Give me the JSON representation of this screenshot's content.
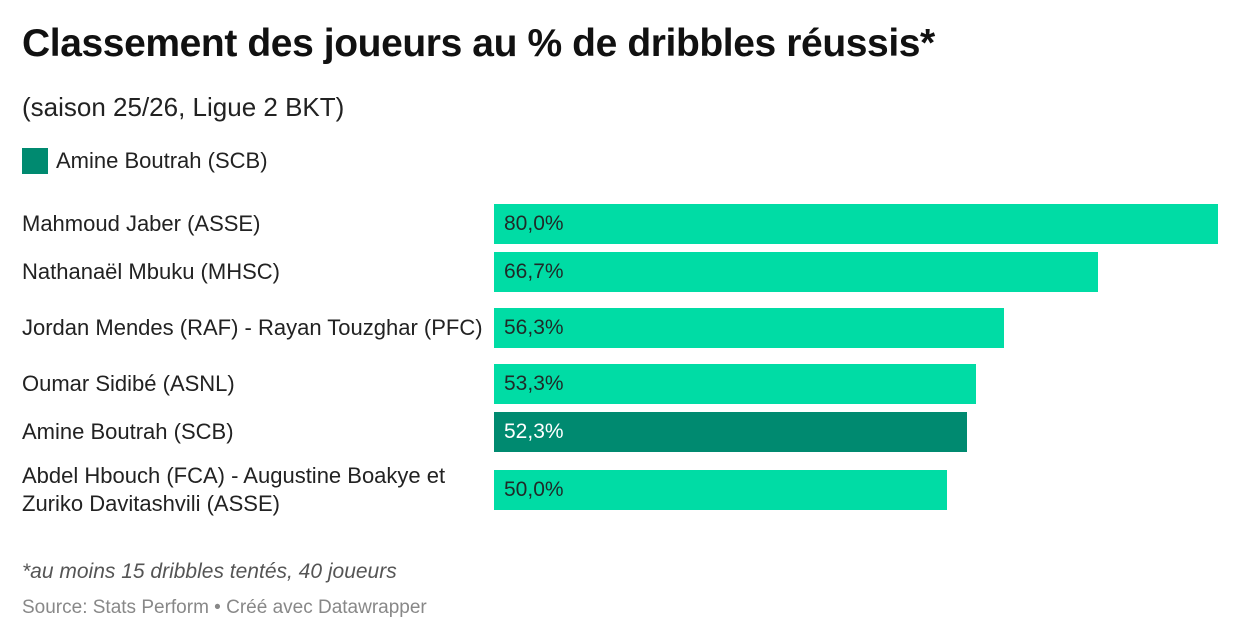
{
  "header": {
    "title": "Classement des joueurs au % de dribbles réussis*",
    "subtitle": "(saison 25/26, Ligue 2 BKT)"
  },
  "legend": {
    "label": "Amine Boutrah (SCB)",
    "color": "#008a70"
  },
  "colors": {
    "default_bar": "#00dca5",
    "highlight_bar": "#008a70"
  },
  "chart_data": {
    "type": "bar",
    "orientation": "horizontal",
    "title": "Classement des joueurs au % de dribbles réussis*",
    "subtitle": "(saison 25/26, Ligue 2 BKT)",
    "categories": [
      "Mahmoud Jaber (ASSE)",
      "Nathanaël Mbuku (MHSC)",
      "Jordan Mendes (RAF) - Rayan Touzghar (PFC)",
      "Oumar Sidibé (ASNL)",
      "Amine Boutrah (SCB)",
      "Abdel Hbouch (FCA) - Augustine Boakye et Zuriko Davitashvili (ASSE)"
    ],
    "values": [
      80.0,
      66.7,
      56.3,
      53.3,
      52.3,
      50.0
    ],
    "value_labels": [
      "80,0%",
      "66,7%",
      "56,3%",
      "53,3%",
      "52,3%",
      "50,0%"
    ],
    "highlighted": [
      false,
      false,
      false,
      false,
      true,
      false
    ],
    "xlim": [
      0,
      80
    ],
    "grid": false,
    "legend_position": "top-left"
  },
  "footer": {
    "note": "*au moins 15 dribbles tentés, 40 joueurs",
    "source": "Source: Stats Perform • Créé avec Datawrapper"
  }
}
